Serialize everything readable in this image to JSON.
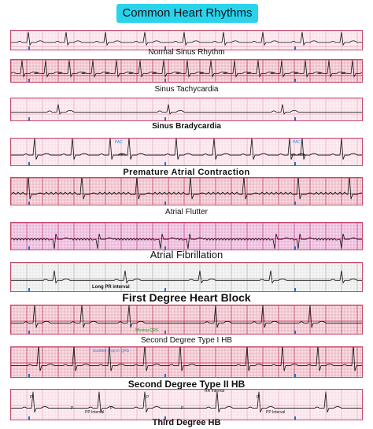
{
  "title": "Common Heart Rhythms",
  "rhythms": [
    {
      "label": "Normal Sinus Rhythm",
      "grid": "pink"
    },
    {
      "label": "Sinus Tachycardia",
      "grid": "red"
    },
    {
      "label": "Sinus Bradycardia",
      "grid": "pink"
    },
    {
      "label": "Premature Atrial Contraction",
      "grid": "pink"
    },
    {
      "label": "Atrial Flutter",
      "grid": "red"
    },
    {
      "label": "Atrial Fibrillation",
      "grid": "magenta"
    },
    {
      "label": "First Degree Heart Block",
      "grid": "gray"
    },
    {
      "label": "Second Degree Type I HB",
      "grid": "red"
    },
    {
      "label": "Second Degree Type II HB",
      "grid": "red"
    },
    {
      "label": "Third Degree HB",
      "grid": "pink"
    }
  ],
  "annotations": {
    "pac_markers": [
      "PAC",
      "PAC"
    ],
    "long_pr": "Long PR interval",
    "missing_qrs": "Missing QRS",
    "sudden_drop": "Sudden drop in QRS",
    "rr_interval": "RR Interval",
    "pp_interval": "PP Interval",
    "p_wave": "P"
  },
  "colors": {
    "title_bg": "#29d3ec",
    "ecg_line": "#111111",
    "pink_grid": "#f2a9c0",
    "red_grid": "#c9334f",
    "magenta_grid": "#c4388f",
    "gray_grid": "#b3b3b3",
    "marker_blue": "#1f6fd1",
    "note_green": "#2f9a2f",
    "note_blue": "#2b8ad8"
  }
}
